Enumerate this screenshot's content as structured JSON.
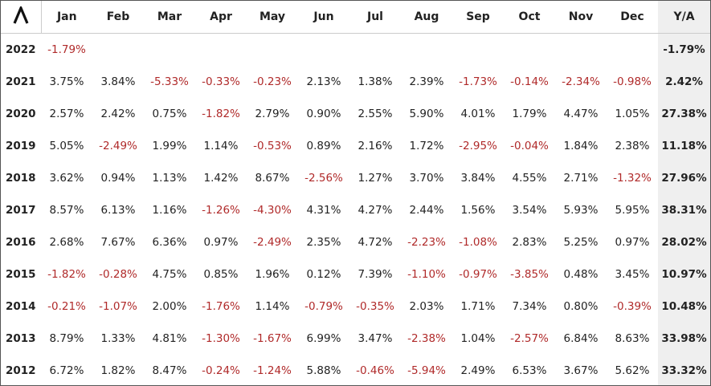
{
  "table": {
    "header": [
      "Jan",
      "Feb",
      "Mar",
      "Apr",
      "May",
      "Jun",
      "Jul",
      "Aug",
      "Sep",
      "Oct",
      "Nov",
      "Dec",
      "Y/A"
    ],
    "rows": [
      {
        "year": "2022",
        "months": [
          "-1.79%",
          null,
          null,
          null,
          null,
          null,
          null,
          null,
          null,
          null,
          null,
          null
        ],
        "total": "-1.79%"
      },
      {
        "year": "2021",
        "months": [
          "3.75%",
          "3.84%",
          "-5.33%",
          "-0.33%",
          "-0.23%",
          "2.13%",
          "1.38%",
          "2.39%",
          "-1.73%",
          "-0.14%",
          "-2.34%",
          "-0.98%"
        ],
        "total": "2.42%"
      },
      {
        "year": "2020",
        "months": [
          "2.57%",
          "2.42%",
          "0.75%",
          "-1.82%",
          "2.79%",
          "0.90%",
          "2.55%",
          "5.90%",
          "4.01%",
          "1.79%",
          "4.47%",
          "1.05%"
        ],
        "total": "27.38%"
      },
      {
        "year": "2019",
        "months": [
          "5.05%",
          "-2.49%",
          "1.99%",
          "1.14%",
          "-0.53%",
          "0.89%",
          "2.16%",
          "1.72%",
          "-2.95%",
          "-0.04%",
          "1.84%",
          "2.38%"
        ],
        "total": "11.18%"
      },
      {
        "year": "2018",
        "months": [
          "3.62%",
          "0.94%",
          "1.13%",
          "1.42%",
          "8.67%",
          "-2.56%",
          "1.27%",
          "3.70%",
          "3.84%",
          "4.55%",
          "2.71%",
          "-1.32%"
        ],
        "total": "27.96%"
      },
      {
        "year": "2017",
        "months": [
          "8.57%",
          "6.13%",
          "1.16%",
          "-1.26%",
          "-4.30%",
          "4.31%",
          "4.27%",
          "2.44%",
          "1.56%",
          "3.54%",
          "5.93%",
          "5.95%"
        ],
        "total": "38.31%"
      },
      {
        "year": "2016",
        "months": [
          "2.68%",
          "7.67%",
          "6.36%",
          "0.97%",
          "-2.49%",
          "2.35%",
          "4.72%",
          "-2.23%",
          "-1.08%",
          "2.83%",
          "5.25%",
          "0.97%"
        ],
        "total": "28.02%"
      },
      {
        "year": "2015",
        "months": [
          "-1.82%",
          "-0.28%",
          "4.75%",
          "0.85%",
          "1.96%",
          "0.12%",
          "7.39%",
          "-1.10%",
          "-0.97%",
          "-3.85%",
          "0.48%",
          "3.45%"
        ],
        "total": "10.97%"
      },
      {
        "year": "2014",
        "months": [
          "-0.21%",
          "-1.07%",
          "2.00%",
          "-1.76%",
          "1.14%",
          "-0.79%",
          "-0.35%",
          "2.03%",
          "1.71%",
          "7.34%",
          "0.80%",
          "-0.39%"
        ],
        "total": "10.48%"
      },
      {
        "year": "2013",
        "months": [
          "8.79%",
          "1.33%",
          "4.81%",
          "-1.30%",
          "-1.67%",
          "6.99%",
          "3.47%",
          "-2.38%",
          "1.04%",
          "-2.57%",
          "6.84%",
          "8.63%"
        ],
        "total": "33.98%"
      },
      {
        "year": "2012",
        "months": [
          "6.72%",
          "1.82%",
          "8.47%",
          "-0.24%",
          "-1.24%",
          "5.88%",
          "-0.46%",
          "-5.94%",
          "2.49%",
          "6.53%",
          "3.67%",
          "5.62%"
        ],
        "total": "33.32%"
      }
    ]
  }
}
